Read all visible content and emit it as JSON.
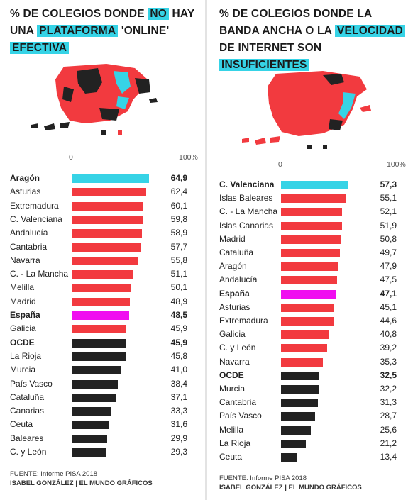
{
  "colors": {
    "highlight": "#36d3e6",
    "red": "#f23a3f",
    "magenta": "#f00ef0",
    "black": "#222222",
    "cyan": "#36d3e6"
  },
  "left": {
    "title_parts": [
      {
        "text": "% DE COLEGIOS DONDE ",
        "hl": false
      },
      {
        "text": "NO",
        "hl": true
      },
      {
        "text": " HAY UNA ",
        "hl": false
      },
      {
        "text": "PLATAFORMA",
        "hl": true
      },
      {
        "text": " 'ONLINE' ",
        "hl": false
      },
      {
        "text": "EFECTIVA",
        "hl": true
      }
    ],
    "axis": {
      "min_label": "0",
      "max_label": "100%"
    },
    "source": {
      "line1": "FUENTE: Informe PISA 2018",
      "line2": "ISABEL GONZÁLEZ | EL MUNDO GRÁFICOS"
    }
  },
  "right": {
    "title_parts": [
      {
        "text": "% DE COLEGIOS DONDE LA BANDA ANCHA O LA ",
        "hl": false
      },
      {
        "text": "VELOCIDAD",
        "hl": true
      },
      {
        "text": " DE INTERNET SON ",
        "hl": false
      },
      {
        "text": "INSUFICIENTES",
        "hl": true
      }
    ],
    "axis": {
      "min_label": "0",
      "max_label": "100%"
    },
    "source": {
      "line1": "FUENTE: Informe PISA 2018",
      "line2": "ISABEL GONZÁLEZ | EL MUNDO GRÁFICOS"
    }
  },
  "chart_data": [
    {
      "type": "bar",
      "title": "% DE COLEGIOS DONDE NO HAY UNA PLATAFORMA 'ONLINE' EFECTIVA",
      "xlim": [
        0,
        100
      ],
      "categories": [
        "Aragón",
        "Asturias",
        "Extremadura",
        "C. Valenciana",
        "Andalucía",
        "Cantabria",
        "Navarra",
        "C. - La Mancha",
        "Melilla",
        "Madrid",
        "España",
        "Galicia",
        "OCDE",
        "La Rioja",
        "Murcia",
        "País Vasco",
        "Cataluña",
        "Canarias",
        "Ceuta",
        "Baleares",
        "C. y León"
      ],
      "labels": [
        "64,9",
        "62,4",
        "60,1",
        "59,8",
        "58,9",
        "57,7",
        "55,8",
        "51,1",
        "50,1",
        "48,9",
        "48,5",
        "45,9",
        "45,9",
        "45,8",
        "41,0",
        "38,4",
        "37,1",
        "33,3",
        "31,6",
        "29,9",
        "29,3"
      ],
      "values": [
        64.9,
        62.4,
        60.1,
        59.8,
        58.9,
        57.7,
        55.8,
        51.1,
        50.1,
        48.9,
        48.5,
        45.9,
        45.9,
        45.8,
        41.0,
        38.4,
        37.1,
        33.3,
        31.6,
        29.9,
        29.3
      ],
      "colors": [
        "cyan",
        "red",
        "red",
        "red",
        "red",
        "red",
        "red",
        "red",
        "red",
        "red",
        "magenta",
        "red",
        "black",
        "black",
        "black",
        "black",
        "black",
        "black",
        "black",
        "black",
        "black"
      ],
      "bold": [
        true,
        false,
        false,
        false,
        false,
        false,
        false,
        false,
        false,
        false,
        true,
        false,
        true,
        false,
        false,
        false,
        false,
        false,
        false,
        false,
        false
      ]
    },
    {
      "type": "bar",
      "title": "% DE COLEGIOS DONDE LA BANDA ANCHA O LA VELOCIDAD DE INTERNET SON INSUFICIENTES",
      "xlim": [
        0,
        100
      ],
      "categories": [
        "C. Valenciana",
        "Islas Baleares",
        "C. - La Mancha",
        "Islas Canarias",
        "Madrid",
        "Cataluña",
        "Aragón",
        "Andalucía",
        "España",
        "Asturias",
        "Extremadura",
        "Galicia",
        "C. y León",
        "Navarra",
        "OCDE",
        "Murcia",
        "Cantabria",
        "País Vasco",
        "Melilla",
        "La Rioja",
        "Ceuta"
      ],
      "labels": [
        "57,3",
        "55,1",
        "52,1",
        "51,9",
        "50,8",
        "49,7",
        "47,9",
        "47,5",
        "47,1",
        "45,1",
        "44,6",
        "40,8",
        "39,2",
        "35,3",
        "32,5",
        "32,2",
        "31,3",
        "28,7",
        "25,6",
        "21,2",
        "13,4"
      ],
      "values": [
        57.3,
        55.1,
        52.1,
        51.9,
        50.8,
        49.7,
        47.9,
        47.5,
        47.1,
        45.1,
        44.6,
        40.8,
        39.2,
        35.3,
        32.5,
        32.2,
        31.3,
        28.7,
        25.6,
        21.2,
        13.4
      ],
      "colors": [
        "cyan",
        "red",
        "red",
        "red",
        "red",
        "red",
        "red",
        "red",
        "magenta",
        "red",
        "red",
        "red",
        "red",
        "red",
        "black",
        "black",
        "black",
        "black",
        "black",
        "black",
        "black"
      ],
      "bold": [
        true,
        false,
        false,
        false,
        false,
        false,
        false,
        false,
        true,
        false,
        false,
        false,
        false,
        false,
        true,
        false,
        false,
        false,
        false,
        false,
        false
      ]
    }
  ]
}
